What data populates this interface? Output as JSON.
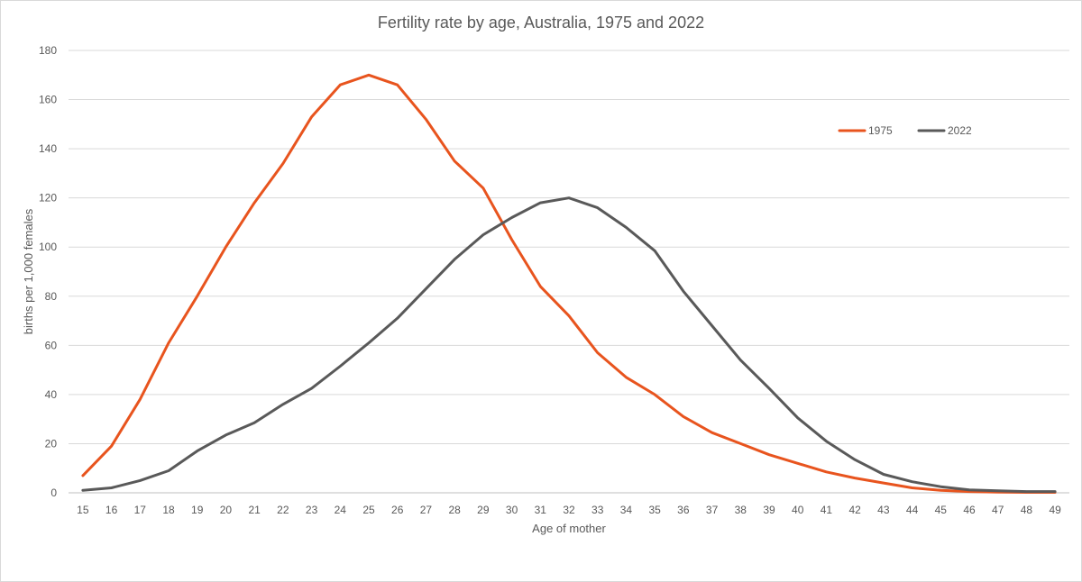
{
  "chart_data": {
    "type": "line",
    "title": "Fertility rate by age, Australia, 1975 and 2022",
    "xlabel": "Age of mother",
    "ylabel": "births per 1,000 females",
    "ylim": [
      0,
      180
    ],
    "yticks": [
      0,
      20,
      40,
      60,
      80,
      100,
      120,
      140,
      160,
      180
    ],
    "grid": true,
    "legend_position": "top-right",
    "x": [
      15,
      16,
      17,
      18,
      19,
      20,
      21,
      22,
      23,
      24,
      25,
      26,
      27,
      28,
      29,
      30,
      31,
      32,
      33,
      34,
      35,
      36,
      37,
      38,
      39,
      40,
      41,
      42,
      43,
      44,
      45,
      46,
      47,
      48,
      49
    ],
    "series": [
      {
        "name": "1975",
        "color": "#E8541E",
        "values": [
          7,
          19,
          38,
          61,
          80,
          100,
          118,
          134,
          153,
          166,
          170,
          166,
          152,
          135,
          124,
          103,
          84,
          72,
          57,
          47,
          40,
          31,
          24.5,
          20,
          15.5,
          12,
          8.5,
          6,
          4,
          2,
          1,
          0.5,
          0.3,
          0.2,
          0.2
        ]
      },
      {
        "name": "2022",
        "color": "#595959",
        "values": [
          1,
          2,
          5,
          9,
          17,
          23.5,
          28.5,
          36,
          42.5,
          51.5,
          61,
          71,
          83,
          95,
          105,
          112,
          118,
          120,
          116,
          108,
          98.5,
          82,
          68,
          54,
          42.5,
          30.5,
          21,
          13.5,
          7.5,
          4.5,
          2.5,
          1.2,
          0.8,
          0.5,
          0.5
        ]
      }
    ]
  }
}
